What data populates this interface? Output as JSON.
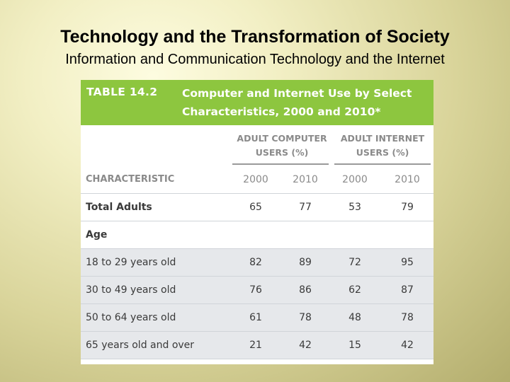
{
  "slide": {
    "title": "Technology and the Transformation of Society",
    "subtitle": "Information and Communication Technology and the Internet"
  },
  "table": {
    "number": "TABLE 14.2",
    "caption": "Computer and Internet Use by Select Characteristics, 2000 and 2010*",
    "groups": [
      "ADULT COMPUTER USERS (%)",
      "ADULT INTERNET USERS (%)"
    ],
    "group_lines": [
      [
        "ADULT COMPUTER",
        "USERS (%)"
      ],
      [
        "ADULT INTERNET",
        "USERS (%)"
      ]
    ],
    "column_label": "CHARACTERISTIC",
    "years": [
      "2000",
      "2010",
      "2000",
      "2010"
    ],
    "rows": [
      {
        "label": "Total Adults",
        "values": [
          "65",
          "77",
          "53",
          "79"
        ]
      },
      {
        "label": "Age",
        "values": []
      },
      {
        "label": "18 to 29 years old",
        "values": [
          "82",
          "89",
          "72",
          "95"
        ]
      },
      {
        "label": "30 to 49 years old",
        "values": [
          "76",
          "86",
          "62",
          "87"
        ]
      },
      {
        "label": "50 to 64 years old",
        "values": [
          "61",
          "78",
          "48",
          "78"
        ]
      },
      {
        "label": "65 years old and over",
        "values": [
          "21",
          "42",
          "15",
          "42"
        ]
      }
    ]
  },
  "colors": {
    "header_green": "#8dc63f",
    "row_shade": "#e6e8eb",
    "muted_text": "#8a8a8a"
  }
}
